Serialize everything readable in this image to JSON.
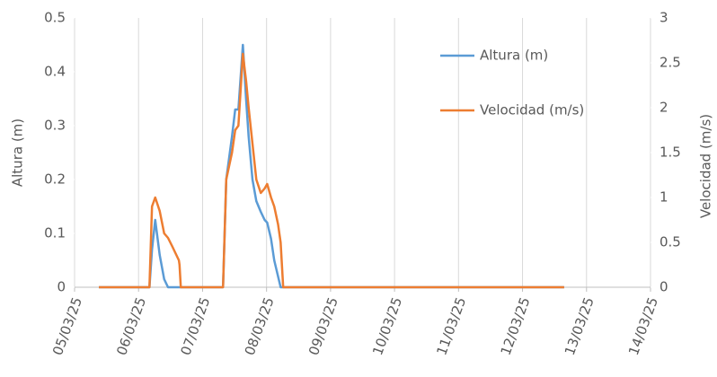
{
  "chart_data": {
    "type": "line",
    "x": [
      5.38,
      6.17,
      6.21,
      6.26,
      6.33,
      6.4,
      6.46,
      6.53,
      6.63,
      6.64,
      6.66,
      7.32,
      7.37,
      7.46,
      7.51,
      7.56,
      7.63,
      7.68,
      7.72,
      7.78,
      7.84,
      7.91,
      7.97,
      8.01,
      8.07,
      8.12,
      8.18,
      8.22,
      8.26,
      12.65
    ],
    "series": [
      {
        "name": "Altura (m)",
        "color": "#5b9bd5",
        "axis": "y",
        "values": [
          0,
          0,
          0.07,
          0.125,
          0.06,
          0.015,
          0,
          0,
          0,
          0,
          0,
          0,
          0.2,
          0.28,
          0.33,
          0.33,
          0.45,
          0.35,
          0.28,
          0.2,
          0.16,
          0.14,
          0.125,
          0.12,
          0.09,
          0.05,
          0.02,
          0,
          0,
          0
        ]
      },
      {
        "name": "Velocidad (m/s)",
        "color": "#ed7d31",
        "axis": "y2",
        "values": [
          0,
          0,
          0.9,
          1.0,
          0.85,
          0.6,
          0.55,
          0.45,
          0.3,
          0.25,
          0,
          0,
          1.2,
          1.5,
          1.75,
          1.8,
          2.6,
          2.3,
          2.0,
          1.6,
          1.2,
          1.05,
          1.1,
          1.15,
          1.0,
          0.9,
          0.7,
          0.5,
          0,
          0
        ]
      }
    ],
    "y_label": "Altura (m)",
    "y2_label": "Velocidad (m/s)",
    "xlim": [
      5,
      14
    ],
    "xticks": [
      {
        "value": 5,
        "label": "05/03/25"
      },
      {
        "value": 6,
        "label": "06/03/25"
      },
      {
        "value": 7,
        "label": "07/03/25"
      },
      {
        "value": 8,
        "label": "08/03/25"
      },
      {
        "value": 9,
        "label": "09/03/25"
      },
      {
        "value": 10,
        "label": "10/03/25"
      },
      {
        "value": 11,
        "label": "11/03/25"
      },
      {
        "value": 12,
        "label": "12/03/25"
      },
      {
        "value": 13,
        "label": "13/03/25"
      },
      {
        "value": 14,
        "label": "14/03/25"
      }
    ],
    "ylim": [
      0,
      0.5
    ],
    "yticks": [
      0,
      0.1,
      0.2,
      0.3,
      0.4,
      0.5
    ],
    "y2lim": [
      0,
      3
    ],
    "y2ticks": [
      0,
      0.5,
      1,
      1.5,
      2,
      2.5,
      3
    ],
    "xgrid": true
  }
}
